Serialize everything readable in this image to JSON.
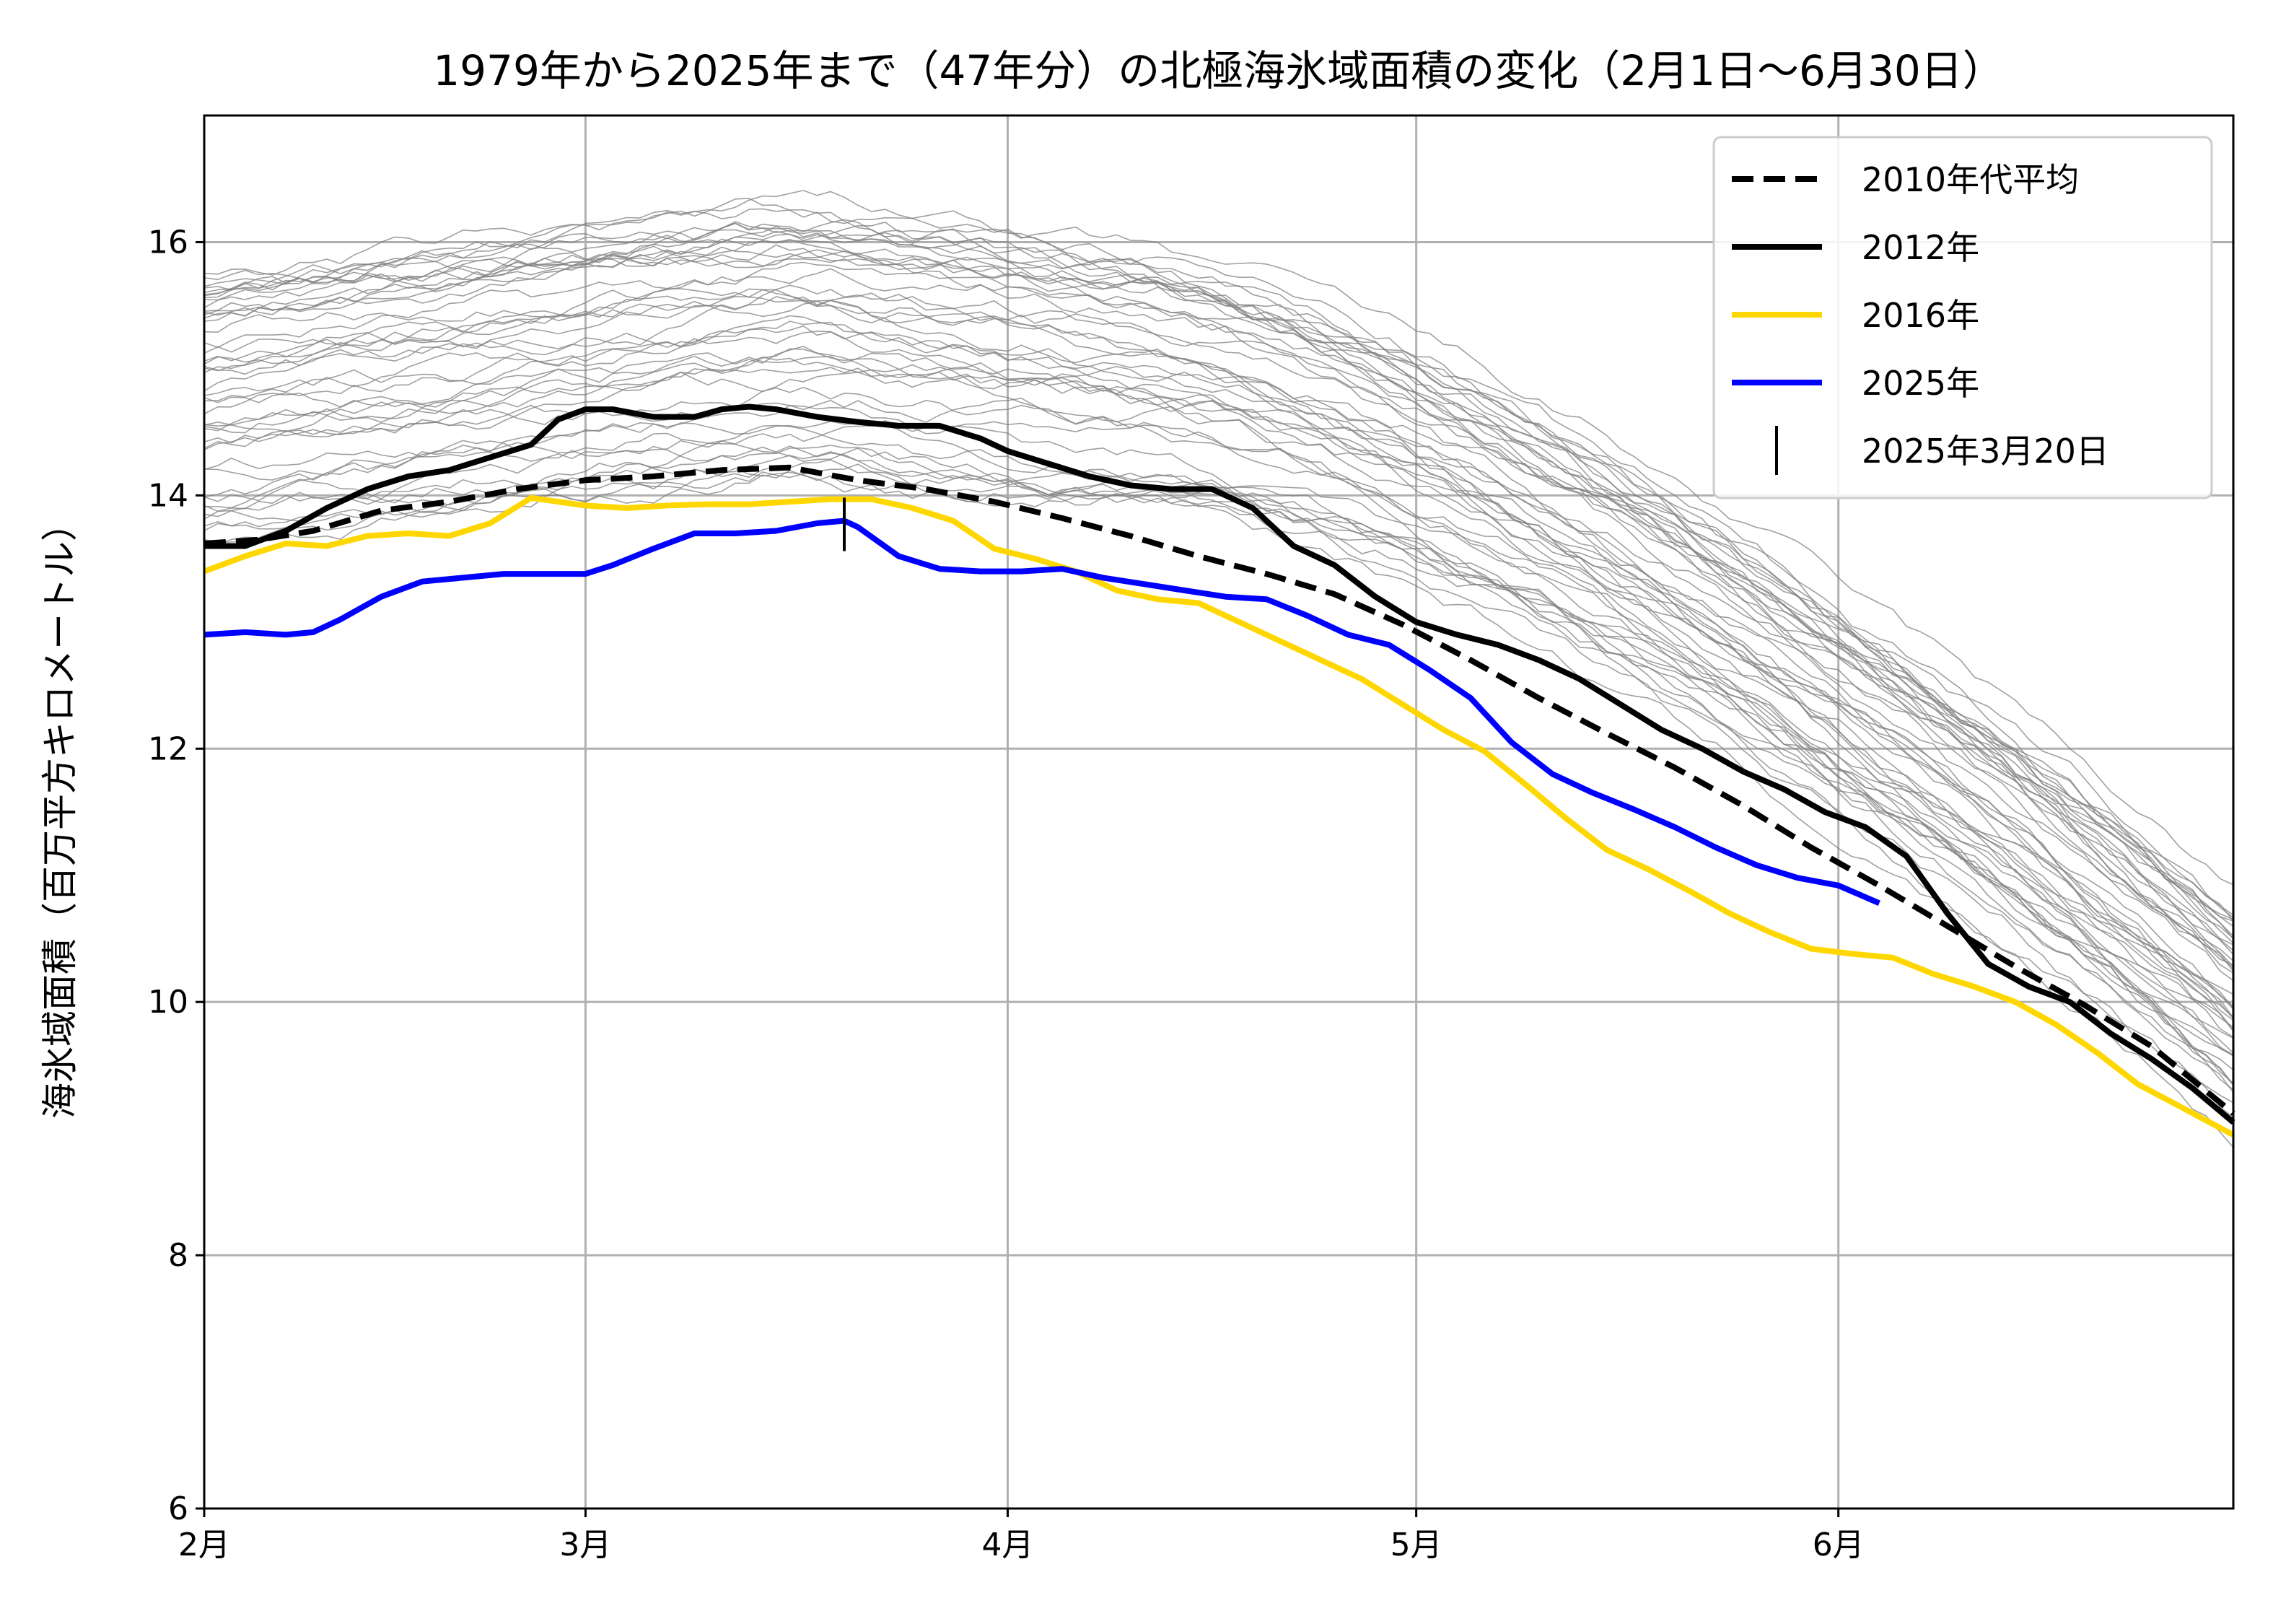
{
  "chart_data": {
    "type": "line",
    "title": "1979年から2025年まで（47年分）の北極海氷域面積の変化（2月1日〜6月30日）",
    "xlabel": "",
    "ylabel": "海氷域面積（百万平方キロメートル）",
    "x_unit": "day_of_year",
    "xlim": [
      32,
      181
    ],
    "ylim": [
      6,
      17
    ],
    "yticks": [
      6,
      8,
      10,
      12,
      14,
      16
    ],
    "xticks": [
      {
        "day": 32,
        "label": "2月"
      },
      {
        "day": 60,
        "label": "3月"
      },
      {
        "day": 91,
        "label": "4月"
      },
      {
        "day": 121,
        "label": "5月"
      },
      {
        "day": 152,
        "label": "6月"
      }
    ],
    "grid": true,
    "legend_position": "top-right",
    "series": [
      {
        "name": "2010年代平均",
        "color": "#000000",
        "style": "dashed",
        "x": [
          32,
          36,
          40,
          45,
          50,
          55,
          60,
          65,
          70,
          75,
          80,
          85,
          90,
          95,
          100,
          105,
          110,
          115,
          120,
          125,
          130,
          135,
          140,
          145,
          150,
          155,
          160,
          165,
          170,
          175,
          181
        ],
        "y": [
          13.62,
          13.65,
          13.72,
          13.88,
          13.95,
          14.05,
          14.12,
          14.15,
          14.2,
          14.22,
          14.12,
          14.05,
          13.95,
          13.82,
          13.68,
          13.52,
          13.38,
          13.22,
          12.98,
          12.7,
          12.4,
          12.12,
          11.85,
          11.55,
          11.22,
          10.92,
          10.6,
          10.28,
          9.98,
          9.65,
          9.12
        ]
      },
      {
        "name": "2012年",
        "color": "#000000",
        "style": "solid",
        "x": [
          32,
          35,
          38,
          41,
          44,
          47,
          50,
          53,
          56,
          58,
          60,
          62,
          65,
          68,
          70,
          72,
          74,
          77,
          80,
          83,
          86,
          89,
          91,
          94,
          97,
          100,
          103,
          106,
          109,
          112,
          115,
          118,
          121,
          124,
          127,
          130,
          133,
          136,
          139,
          142,
          145,
          148,
          151,
          154,
          157,
          160,
          163,
          166,
          169,
          172,
          175,
          178,
          181
        ],
        "y": [
          13.6,
          13.6,
          13.72,
          13.9,
          14.05,
          14.15,
          14.2,
          14.3,
          14.4,
          14.6,
          14.68,
          14.68,
          14.62,
          14.62,
          14.68,
          14.7,
          14.68,
          14.62,
          14.58,
          14.55,
          14.55,
          14.45,
          14.35,
          14.25,
          14.15,
          14.08,
          14.05,
          14.05,
          13.9,
          13.6,
          13.45,
          13.2,
          13.0,
          12.9,
          12.82,
          12.7,
          12.55,
          12.35,
          12.15,
          12.0,
          11.82,
          11.68,
          11.5,
          11.38,
          11.15,
          10.7,
          10.3,
          10.12,
          10.0,
          9.75,
          9.55,
          9.32,
          9.05
        ]
      },
      {
        "name": "2016年",
        "color": "#ffd700",
        "style": "solid",
        "x": [
          32,
          35,
          38,
          41,
          44,
          47,
          50,
          53,
          56,
          58,
          60,
          63,
          66,
          69,
          72,
          75,
          78,
          81,
          84,
          87,
          90,
          93,
          96,
          99,
          102,
          105,
          108,
          111,
          114,
          117,
          120,
          123,
          126,
          129,
          132,
          135,
          138,
          141,
          144,
          147,
          150,
          153,
          156,
          159,
          162,
          165,
          168,
          171,
          174,
          177,
          181
        ],
        "y": [
          13.4,
          13.52,
          13.62,
          13.6,
          13.68,
          13.7,
          13.68,
          13.78,
          13.98,
          13.95,
          13.92,
          13.9,
          13.92,
          13.93,
          13.93,
          13.95,
          13.97,
          13.97,
          13.9,
          13.8,
          13.58,
          13.5,
          13.4,
          13.25,
          13.18,
          13.15,
          13.0,
          12.85,
          12.7,
          12.55,
          12.35,
          12.15,
          11.98,
          11.72,
          11.45,
          11.2,
          11.05,
          10.88,
          10.7,
          10.55,
          10.42,
          10.38,
          10.35,
          10.22,
          10.12,
          10.0,
          9.82,
          9.6,
          9.35,
          9.18,
          8.95
        ]
      },
      {
        "name": "2025年",
        "color": "#0000ff",
        "style": "solid",
        "x": [
          32,
          35,
          38,
          40,
          42,
          45,
          48,
          51,
          54,
          57,
          60,
          62,
          65,
          68,
          71,
          74,
          77,
          79,
          80,
          83,
          86,
          89,
          92,
          95,
          98,
          101,
          104,
          107,
          110,
          113,
          116,
          119,
          122,
          125,
          128,
          131,
          134,
          137,
          140,
          143,
          146,
          149,
          152,
          155
        ],
        "y": [
          12.9,
          12.92,
          12.9,
          12.92,
          13.02,
          13.2,
          13.32,
          13.35,
          13.38,
          13.38,
          13.38,
          13.45,
          13.58,
          13.7,
          13.7,
          13.72,
          13.78,
          13.8,
          13.75,
          13.52,
          13.42,
          13.4,
          13.4,
          13.42,
          13.35,
          13.3,
          13.25,
          13.2,
          13.18,
          13.05,
          12.9,
          12.82,
          12.62,
          12.4,
          12.05,
          11.8,
          11.65,
          11.52,
          11.38,
          11.22,
          11.08,
          10.98,
          10.92,
          10.78
        ]
      },
      {
        "name": "2025年3月20日",
        "color": "#000000",
        "style": "marker",
        "marker": "vertical-line",
        "x": [
          79
        ],
        "y": [
          13.8
        ]
      }
    ],
    "background_series": {
      "description_count": 47,
      "color": "#808080",
      "style": "thin"
    }
  }
}
